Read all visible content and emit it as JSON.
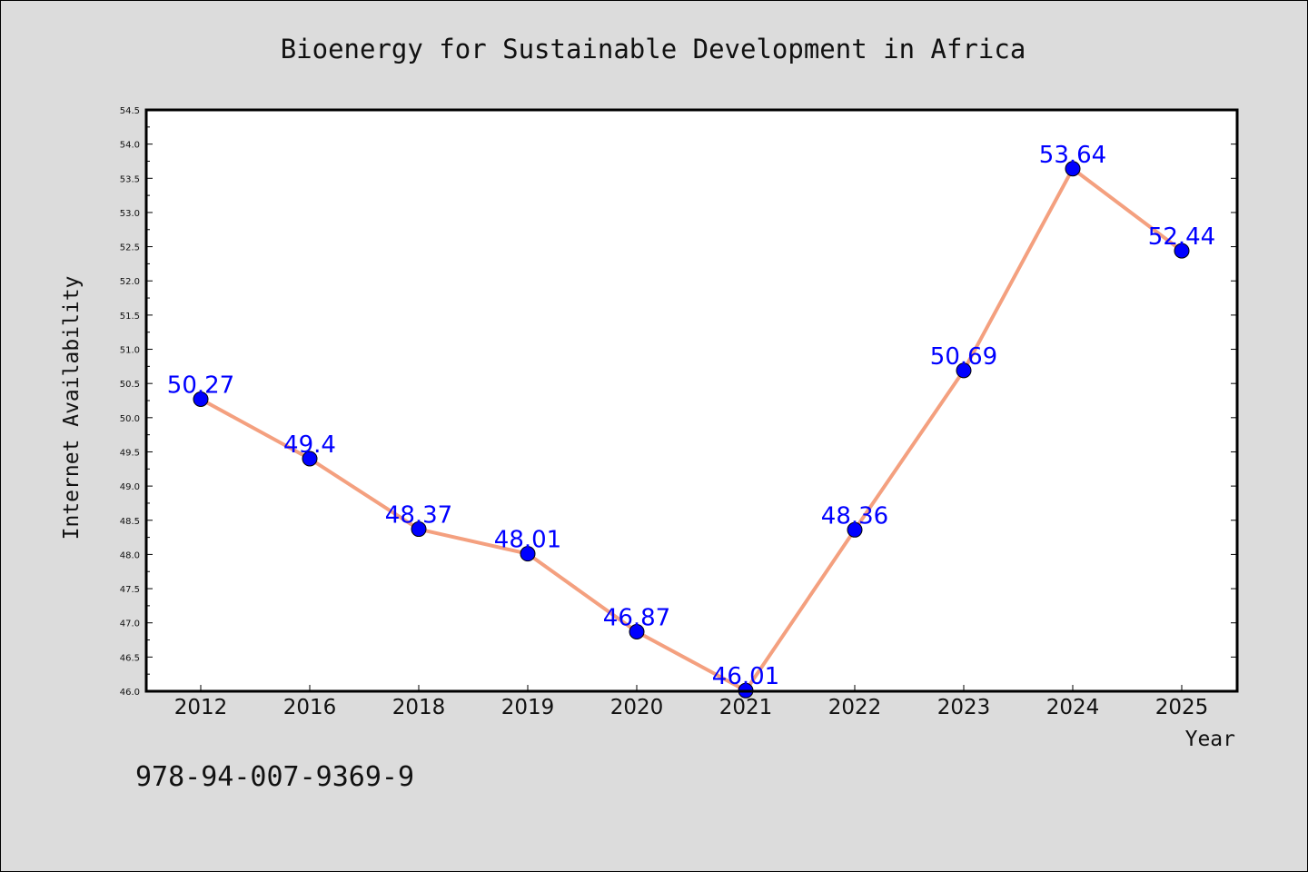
{
  "chart_data": {
    "type": "line",
    "title": "Bioenergy for Sustainable Development in Africa",
    "xlabel": "Year",
    "ylabel": "Internet Availability",
    "categories": [
      "2012",
      "2016",
      "2018",
      "2019",
      "2020",
      "2021",
      "2022",
      "2023",
      "2024",
      "2025"
    ],
    "values": [
      50.27,
      49.4,
      48.37,
      48.01,
      46.87,
      46.01,
      48.36,
      50.69,
      53.64,
      52.44
    ],
    "data_labels": [
      "50.27",
      "49.4",
      "48.37",
      "48.01",
      "46.87",
      "46.01",
      "48.36",
      "50.69",
      "53.64",
      "52.44"
    ],
    "ylim": [
      46.0,
      54.5
    ],
    "yticks": [
      "46.0",
      "46.5",
      "47.0",
      "47.5",
      "48.0",
      "48.5",
      "49.0",
      "49.5",
      "50.0",
      "50.5",
      "51.0",
      "51.5",
      "52.0",
      "52.5",
      "53.0",
      "53.5",
      "54.0",
      "54.5"
    ],
    "grid": false,
    "line_color": "#f4a07f",
    "marker_color": "#0000ff",
    "label_color": "#0000ff"
  },
  "footnote": "978-94-007-9369-9"
}
